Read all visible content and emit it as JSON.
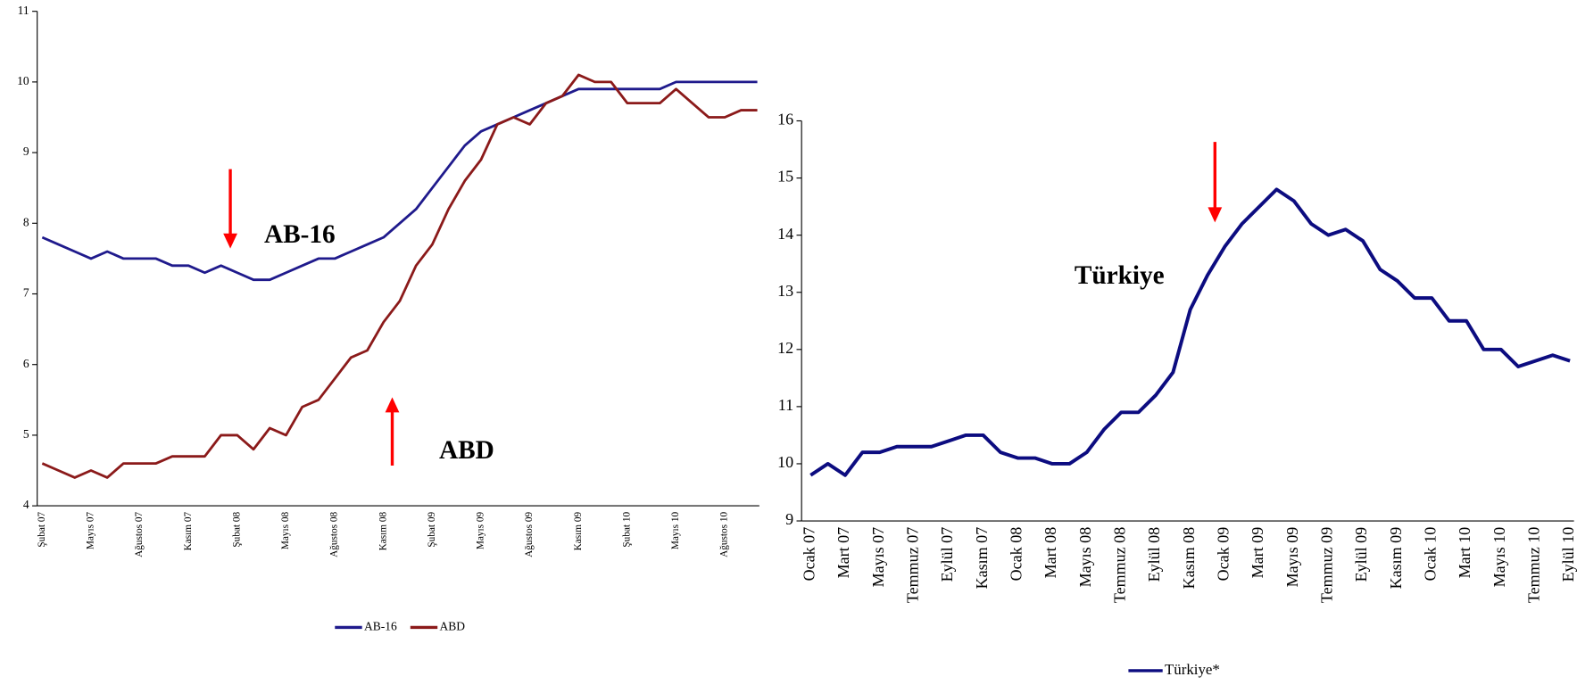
{
  "chart_data": [
    {
      "type": "line",
      "categories": [
        "Şubat 07",
        null,
        null,
        "Mayıs 07",
        null,
        null,
        "Ağustos 07",
        null,
        null,
        "Kasım 07",
        null,
        null,
        "Şubat 08",
        null,
        null,
        "Mayıs 08",
        null,
        null,
        "Ağustos 08",
        null,
        null,
        "Kasım 08",
        null,
        null,
        "Şubat 09",
        null,
        null,
        "Mayıs 09",
        null,
        null,
        "Ağustos 09",
        null,
        null,
        "Kasım 09",
        null,
        null,
        "Şubat 10",
        null,
        null,
        "Mayıs 10",
        null,
        null,
        "Ağustos 10",
        null,
        null
      ],
      "series": [
        {
          "name": "AB-16",
          "color": "#1f1a8c",
          "values": [
            7.8,
            7.7,
            7.6,
            7.5,
            7.6,
            7.5,
            7.5,
            7.5,
            7.4,
            7.4,
            7.3,
            7.4,
            7.3,
            7.2,
            7.2,
            7.3,
            7.4,
            7.5,
            7.5,
            7.6,
            7.7,
            7.8,
            8.0,
            8.2,
            8.5,
            8.8,
            9.1,
            9.3,
            9.4,
            9.5,
            9.6,
            9.7,
            9.8,
            9.9,
            9.9,
            9.9,
            9.9,
            9.9,
            9.9,
            10.0,
            10.0,
            10.0,
            10.0,
            10.0,
            10.0
          ]
        },
        {
          "name": "ABD",
          "color": "#8b1a1a",
          "values": [
            4.6,
            4.5,
            4.4,
            4.5,
            4.4,
            4.6,
            4.6,
            4.6,
            4.7,
            4.7,
            4.7,
            5.0,
            5.0,
            4.8,
            5.1,
            5.0,
            5.4,
            5.5,
            5.8,
            6.1,
            6.2,
            6.6,
            6.9,
            7.4,
            7.7,
            8.2,
            8.6,
            8.9,
            9.4,
            9.5,
            9.4,
            9.7,
            9.8,
            10.1,
            10.0,
            10.0,
            9.7,
            9.7,
            9.7,
            9.9,
            9.7,
            9.5,
            9.5,
            9.6,
            9.6
          ]
        }
      ],
      "ylim": [
        4,
        11
      ],
      "yticks": [
        4,
        5,
        6,
        7,
        8,
        9,
        10,
        11
      ],
      "annotations": [
        {
          "text": "AB-16",
          "color": "#2e2a8f"
        },
        {
          "text": "ABD",
          "color": "#ff4000"
        }
      ],
      "legend": "bottom"
    },
    {
      "type": "line",
      "categories": [
        "Ocak 07",
        null,
        "Mart 07",
        null,
        "Mayıs 07",
        null,
        "Temmuz 07",
        null,
        "Eylül 07",
        null,
        "Kasım 07",
        null,
        "Ocak 08",
        null,
        "Mart 08",
        null,
        "Mayıs 08",
        null,
        "Temmuz 08",
        null,
        "Eylül 08",
        null,
        "Kasım 08",
        null,
        "Ocak 09",
        null,
        "Mart 09",
        null,
        "Mayıs 09",
        null,
        "Temmuz 09",
        null,
        "Eylül 09",
        null,
        "Kasım 09",
        null,
        "Ocak 10",
        null,
        "Mart 10",
        null,
        "Mayıs 10",
        null,
        "Temmuz 10",
        null,
        "Eylül 10"
      ],
      "series": [
        {
          "name": "Türkiye*",
          "color": "#0c0c80",
          "values": [
            9.8,
            10.0,
            9.8,
            10.2,
            10.2,
            10.3,
            10.3,
            10.3,
            10.4,
            10.5,
            10.5,
            10.2,
            10.1,
            10.1,
            10.0,
            10.0,
            10.2,
            10.6,
            10.9,
            10.9,
            11.2,
            11.6,
            12.7,
            13.3,
            13.8,
            14.2,
            14.5,
            14.8,
            14.6,
            14.2,
            14.0,
            14.1,
            13.9,
            13.4,
            13.2,
            12.9,
            12.9,
            12.5,
            12.5,
            12.0,
            12.0,
            11.7,
            11.8,
            11.9,
            11.8
          ]
        }
      ],
      "ylim": [
        9,
        16
      ],
      "yticks": [
        9,
        10,
        11,
        12,
        13,
        14,
        15,
        16
      ],
      "annotations": [
        {
          "text": "Türkiye",
          "color": "#2e2a8f"
        }
      ],
      "legend": "bottom"
    }
  ]
}
